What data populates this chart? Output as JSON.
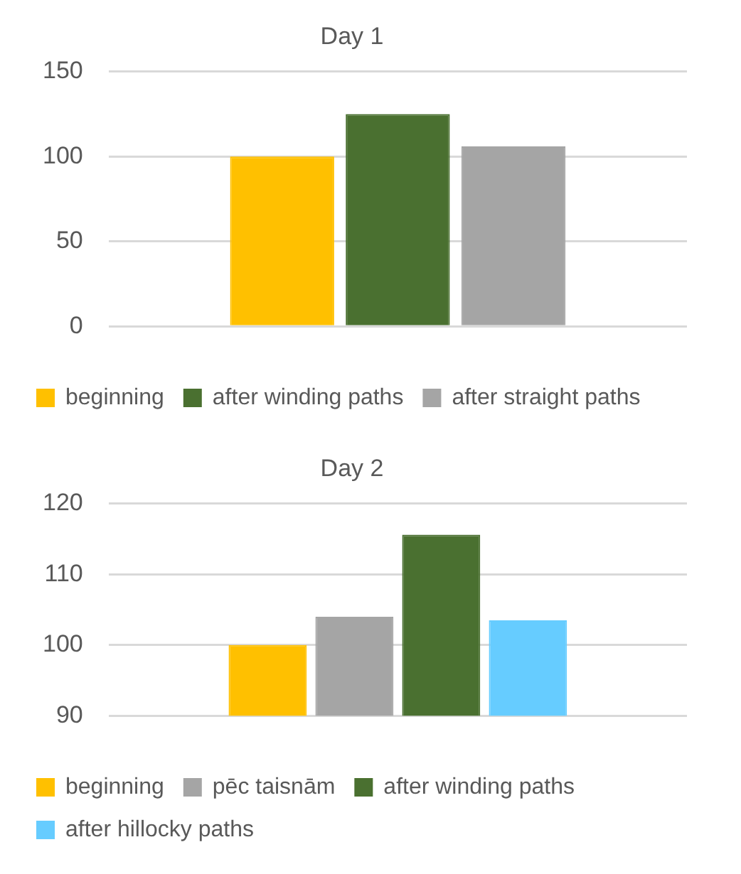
{
  "chart_data": [
    {
      "type": "bar",
      "title": "Day 1",
      "categories": [
        null
      ],
      "series": [
        {
          "name": "beginning",
          "color": "#ffc000",
          "values": [
            100
          ]
        },
        {
          "name": "after winding paths",
          "color": "#4a7030",
          "values": [
            125
          ]
        },
        {
          "name": "after straight paths",
          "color": "#a5a5a5",
          "values": [
            106
          ]
        }
      ],
      "ylim": [
        0,
        150
      ],
      "yticks": [
        0,
        50,
        100,
        150
      ],
      "grid": "y",
      "legend": "bottom"
    },
    {
      "type": "bar",
      "title": "Day 2",
      "categories": [
        null
      ],
      "series": [
        {
          "name": "beginning",
          "color": "#ffc000",
          "values": [
            100
          ]
        },
        {
          "name": "pēc taisnām",
          "color": "#a5a5a5",
          "values": [
            104
          ]
        },
        {
          "name": "after winding paths",
          "color": "#4a7030",
          "values": [
            115.6
          ]
        },
        {
          "name": "after hillocky paths",
          "color": "#66ccff",
          "values": [
            103.5
          ]
        }
      ],
      "ylim": [
        90,
        120
      ],
      "yticks": [
        90,
        100,
        110,
        120
      ],
      "grid": "y",
      "legend": "bottom"
    }
  ]
}
